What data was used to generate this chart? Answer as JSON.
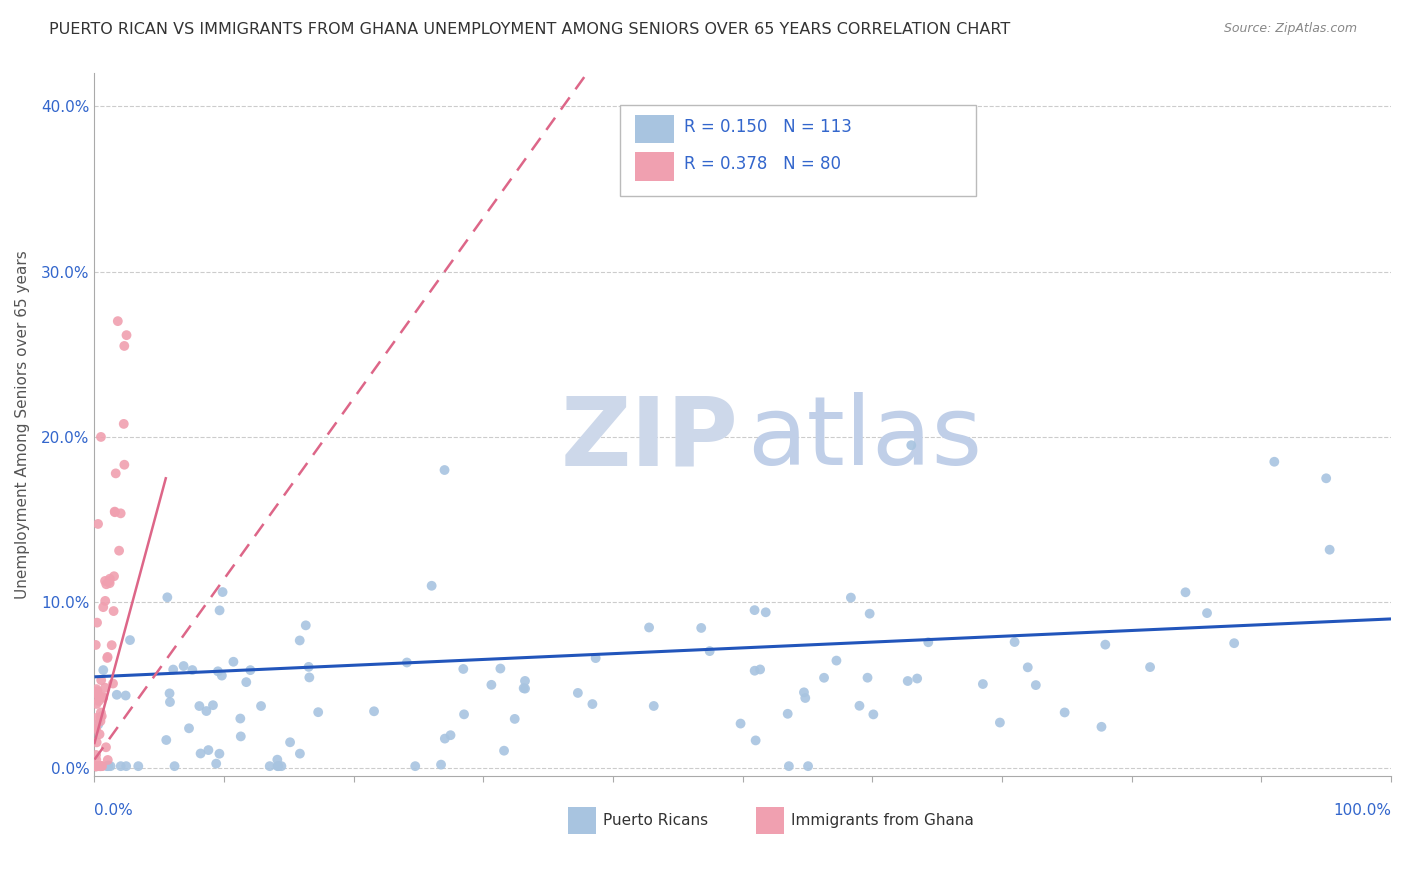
{
  "title": "PUERTO RICAN VS IMMIGRANTS FROM GHANA UNEMPLOYMENT AMONG SENIORS OVER 65 YEARS CORRELATION CHART",
  "source": "Source: ZipAtlas.com",
  "ylabel": "Unemployment Among Seniors over 65 years",
  "yticks": [
    "0.0%",
    "10.0%",
    "20.0%",
    "30.0%",
    "40.0%"
  ],
  "ytick_vals": [
    0.0,
    0.1,
    0.2,
    0.3,
    0.4
  ],
  "xlim": [
    0.0,
    1.0
  ],
  "ylim": [
    -0.005,
    0.42
  ],
  "scatter1_color": "#a8c4e0",
  "scatter2_color": "#f0a0b0",
  "trend1_color": "#2255bb",
  "trend2_color": "#dd6688",
  "watermark_zip_color": "#cdd8ea",
  "watermark_atlas_color": "#c0cfe8",
  "r1": 0.15,
  "n1": 113,
  "r2": 0.378,
  "n2": 80,
  "legend_text_color": "#3366cc",
  "title_color": "#333333",
  "source_color": "#888888",
  "axis_label_color": "#555555",
  "tick_label_color": "#3366cc",
  "grid_color": "#cccccc"
}
